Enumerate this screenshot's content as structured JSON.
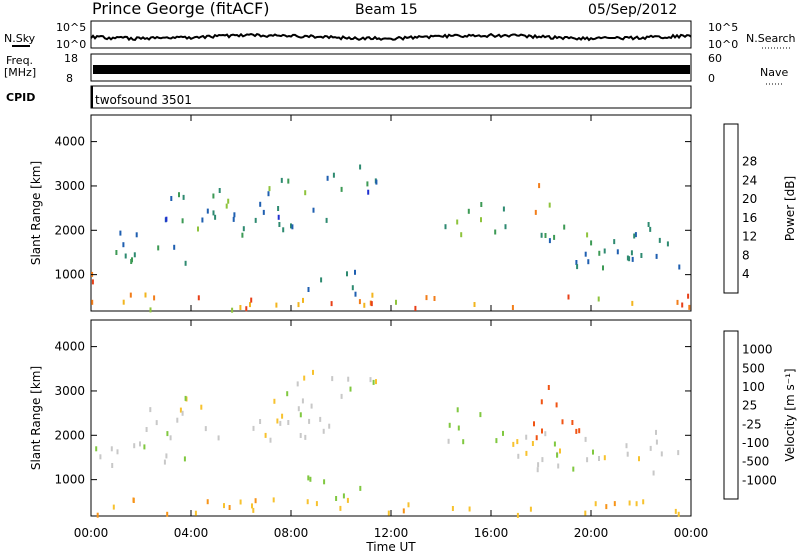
{
  "header": {
    "station": "Prince George (fitACF)",
    "beam": "Beam 15",
    "date": "05/Sep/2012"
  },
  "strip": {
    "nsky_label": "N.Sky",
    "nsearch_label": "N.Search",
    "left_ticks": [
      "10^5",
      "10^0"
    ],
    "right_ticks": [
      "10^5",
      "10^0"
    ],
    "freq_label_1": "Freq.",
    "freq_label_2": "[MHz]",
    "freq_ticks": [
      "18",
      "8"
    ],
    "nave_label": "Nave",
    "nave_ticks": [
      "60",
      "0"
    ],
    "cpid_label": "CPID",
    "cpid_value": "twofsound 3501"
  },
  "colors": {
    "power": [
      "#2030d0",
      "#1f5fb0",
      "#2e8a70",
      "#3d9a55",
      "#8ec33c",
      "#f2b51e",
      "#f27d19",
      "#e84018",
      "#e51414"
    ],
    "velocity": [
      "#e01414",
      "#f05414",
      "#f79418",
      "#f7c22e",
      "#c8c8c8",
      "#80c840",
      "#3aa048",
      "#2a70b0",
      "#2030c0"
    ]
  },
  "chart_data": [
    {
      "type": "heatmap",
      "panel": "power",
      "ylabel": "Slant Range [km]",
      "yticks": [
        "1000",
        "2000",
        "3000",
        "4000"
      ],
      "ylim": [
        180,
        4600
      ],
      "xlim": [
        "00:00",
        "24:00"
      ],
      "colorbar_label": "Power [dB]",
      "colorbar_ticks": [
        "4",
        "8",
        "12",
        "16",
        "20",
        "24",
        "28"
      ],
      "colorbar_range": [
        0,
        32
      ],
      "echo_regions": [
        {
          "t0": 0.0,
          "t1": 24.0,
          "r0": 250,
          "r1": 600,
          "level": 22
        },
        {
          "t0": 0.0,
          "t1": 0.6,
          "r0": 500,
          "r1": 1300,
          "level": 26
        },
        {
          "t0": 0.0,
          "t1": 4.0,
          "r0": 1300,
          "r1": 2000,
          "level": 10
        },
        {
          "t0": 2.0,
          "t1": 9.5,
          "r0": 1900,
          "r1": 3000,
          "level": 9
        },
        {
          "t0": 7.5,
          "t1": 11.5,
          "r0": 2900,
          "r1": 3500,
          "level": 8
        },
        {
          "t0": 14.0,
          "t1": 16.5,
          "r0": 1900,
          "r1": 2700,
          "level": 11
        },
        {
          "t0": 16.5,
          "t1": 24.0,
          "r0": 1200,
          "r1": 2200,
          "level": 10
        },
        {
          "t0": 17.6,
          "t1": 18.4,
          "r0": 2300,
          "r1": 3200,
          "level": 18
        },
        {
          "t0": 8.5,
          "t1": 11.0,
          "r0": 600,
          "r1": 1200,
          "level": 7
        }
      ]
    },
    {
      "type": "heatmap",
      "panel": "velocity",
      "ylabel": "Slant Range [km]",
      "yticks": [
        "1000",
        "2000",
        "3000",
        "4000"
      ],
      "ylim": [
        180,
        4600
      ],
      "xlabel": "Time UT",
      "xticks": [
        "00:00",
        "04:00",
        "08:00",
        "12:00",
        "16:00",
        "20:00",
        "00:00"
      ],
      "xlim": [
        "00:00",
        "24:00"
      ],
      "colorbar_label": "Velocity [m s^-1]",
      "colorbar_ticks": [
        "1000",
        "500",
        "100",
        "25",
        "-25",
        "-100",
        "-500",
        "-1000"
      ],
      "echo_regions": [
        {
          "t0": 0.0,
          "t1": 24.0,
          "r0": 250,
          "r1": 600,
          "velocity": -80
        },
        {
          "t0": 0.0,
          "t1": 4.0,
          "r0": 1300,
          "r1": 2000,
          "velocity": 0
        },
        {
          "t0": 2.0,
          "t1": 9.5,
          "r0": 1900,
          "r1": 3000,
          "velocity": 0
        },
        {
          "t0": 7.5,
          "t1": 11.5,
          "r0": 2900,
          "r1": 3500,
          "velocity": 0
        },
        {
          "t0": 14.0,
          "t1": 16.5,
          "r0": 1900,
          "r1": 2700,
          "velocity": 60
        },
        {
          "t0": 16.5,
          "t1": 24.0,
          "r0": 1200,
          "r1": 2200,
          "velocity": 0
        },
        {
          "t0": 17.6,
          "t1": 19.5,
          "r0": 1900,
          "r1": 3200,
          "velocity": -700
        },
        {
          "t0": 8.5,
          "t1": 11.0,
          "r0": 600,
          "r1": 1200,
          "velocity": 40
        }
      ]
    }
  ]
}
